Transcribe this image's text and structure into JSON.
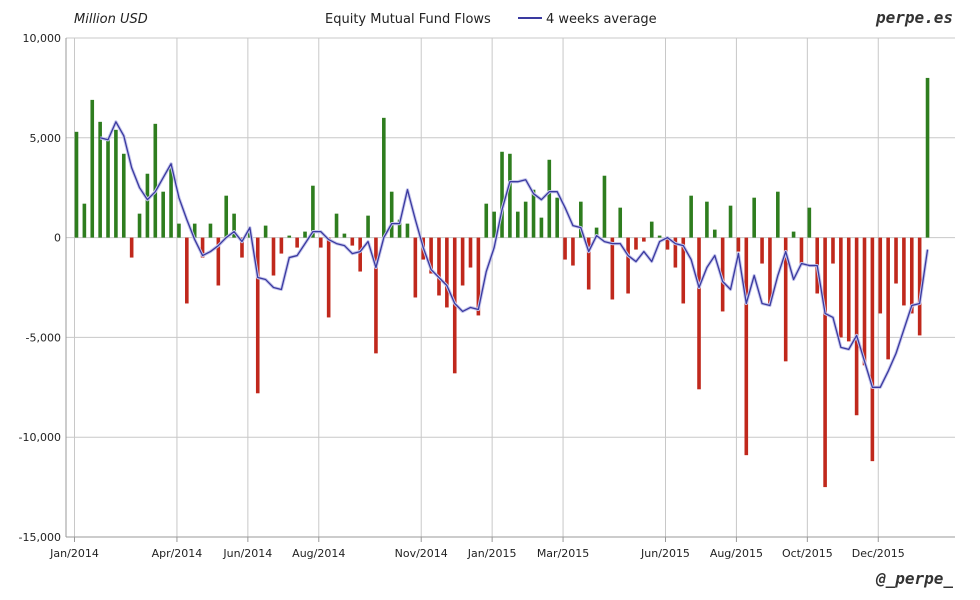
{
  "chart_data": {
    "type": "bar",
    "title": "Equity Mutual Fund Flows",
    "unit_label": "Million USD",
    "brand": "perpe.es",
    "credit": "@_perpe_",
    "ylim": [
      -15000,
      10000
    ],
    "yticks": [
      10000,
      5000,
      0,
      -5000,
      -10000,
      -15000
    ],
    "ytick_labels": [
      "10,000",
      "5,000",
      "0",
      "-5,000",
      "-10,000",
      "-15,000"
    ],
    "grid": true,
    "legend_position": "top",
    "colors": {
      "positive": "#2e7d1e",
      "negative": "#c0281c",
      "average": "#3a3aa0"
    },
    "x_tick_labels": [
      "Jan/2014",
      "Apr/2014",
      "Jun/2014",
      "Aug/2014",
      "Nov/2014",
      "Jan/2015",
      "Mar/2015",
      "Jun/2015",
      "Aug/2015",
      "Oct/2015",
      "Dec/2015"
    ],
    "x_tick_weeks": [
      0,
      13,
      22,
      31,
      44,
      53,
      62,
      75,
      84,
      93,
      102
    ],
    "series": [
      {
        "name": "",
        "kind": "bar",
        "values": [
          5300,
          1700,
          6900,
          5800,
          5000,
          5400,
          4200,
          -1000,
          1200,
          3200,
          5700,
          2300,
          3700,
          700,
          -3300,
          700,
          -1000,
          700,
          -2400,
          2100,
          1200,
          -1000,
          400,
          -7800,
          600,
          -1900,
          -800,
          100,
          -500,
          300,
          2600,
          -500,
          -4000,
          1200,
          200,
          -400,
          -1700,
          1100,
          -5800,
          6000,
          2300,
          900,
          700,
          -3000,
          -1100,
          -1800,
          -2900,
          -3500,
          -6800,
          -2400,
          -1500,
          -3900,
          1700,
          1300,
          4300,
          4200,
          1300,
          1800,
          2400,
          1000,
          3900,
          2000,
          -1100,
          -1400,
          1800,
          -2600,
          500,
          3100,
          -3100,
          1500,
          -2800,
          -600,
          -200,
          800,
          100,
          -600,
          -1500,
          -3300,
          2100,
          -7600,
          1800,
          400,
          -3700,
          1600,
          -700,
          -10900,
          2000,
          -1300,
          -3300,
          2300,
          -6200,
          300,
          -1400,
          1500,
          -2800,
          -12500,
          -1300,
          -5000,
          -5200,
          -8900,
          -6400,
          -11200,
          -3800,
          -6100,
          -2300,
          -3400,
          -3800,
          -4900,
          8000
        ]
      },
      {
        "name": "4 weeks average",
        "kind": "line",
        "values": [
          null,
          null,
          null,
          5000,
          4900,
          5800,
          5100,
          3500,
          2500,
          1900,
          2300,
          3000,
          3700,
          2000,
          900,
          -100,
          -900,
          -700,
          -400,
          0,
          300,
          -200,
          500,
          -2000,
          -2100,
          -2500,
          -2600,
          -1000,
          -900,
          -300,
          300,
          300,
          -100,
          -300,
          -400,
          -800,
          -700,
          -200,
          -1500,
          0,
          700,
          700,
          2400,
          900,
          -500,
          -1600,
          -2000,
          -2400,
          -3300,
          -3700,
          -3500,
          -3600,
          -1700,
          -500,
          1400,
          2800,
          2800,
          2900,
          2200,
          1900,
          2300,
          2300,
          1500,
          600,
          500,
          -700,
          100,
          -200,
          -300,
          -300,
          -900,
          -1200,
          -700,
          -1200,
          -200,
          0,
          -300,
          -400,
          -1100,
          -2500,
          -1500,
          -900,
          -2200,
          -2600,
          -800,
          -3300,
          -1900,
          -3300,
          -3400,
          -1900,
          -700,
          -2100,
          -1300,
          -1400,
          -1400,
          -3800,
          -4000,
          -5500,
          -5600,
          -4900,
          -6200,
          -7500,
          -7500,
          -6700,
          -5800,
          -4600,
          -3400,
          -3300,
          -600
        ]
      }
    ]
  }
}
